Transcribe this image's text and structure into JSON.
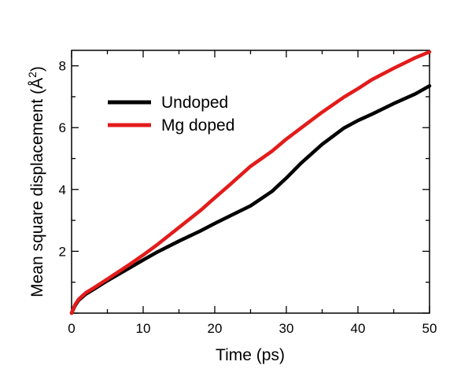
{
  "chart_data": {
    "type": "line",
    "xlabel": "Time (ps)",
    "ylabel": "Mean square displacement (Å",
    "ylabel_superscript": "2",
    "ylabel_suffix": ")",
    "xlim": [
      0,
      50
    ],
    "ylim": [
      0,
      8.5
    ],
    "xticks": [
      0,
      10,
      20,
      30,
      40,
      50
    ],
    "xtick_labels": [
      "0",
      "10",
      "20",
      "30",
      "40",
      "50"
    ],
    "yticks": [
      0,
      2,
      4,
      6,
      8
    ],
    "ytick_labels": [
      "",
      "2",
      "4",
      "6",
      "8"
    ],
    "grid": false,
    "legend_position": "top-left",
    "series": [
      {
        "name": "Undoped",
        "color": "#000000",
        "x": [
          0,
          0.5,
          1,
          2,
          3,
          5,
          8,
          10,
          12,
          15,
          18,
          20,
          22,
          25,
          28,
          30,
          32,
          35,
          38,
          40,
          42,
          45,
          48,
          50
        ],
        "y": [
          0,
          0.25,
          0.42,
          0.62,
          0.76,
          1.05,
          1.45,
          1.72,
          1.98,
          2.33,
          2.66,
          2.9,
          3.13,
          3.47,
          3.94,
          4.37,
          4.84,
          5.46,
          5.98,
          6.23,
          6.44,
          6.78,
          7.09,
          7.35
        ]
      },
      {
        "name": "Mg doped",
        "color": "#e31b1b",
        "x": [
          0,
          0.5,
          1,
          2,
          3,
          5,
          8,
          10,
          12,
          15,
          18,
          20,
          22,
          25,
          28,
          30,
          32,
          35,
          38,
          40,
          42,
          45,
          48,
          50
        ],
        "y": [
          0,
          0.28,
          0.45,
          0.66,
          0.8,
          1.1,
          1.56,
          1.88,
          2.22,
          2.77,
          3.32,
          3.73,
          4.13,
          4.75,
          5.24,
          5.63,
          5.98,
          6.5,
          6.98,
          7.26,
          7.56,
          7.92,
          8.26,
          8.45
        ]
      }
    ]
  }
}
